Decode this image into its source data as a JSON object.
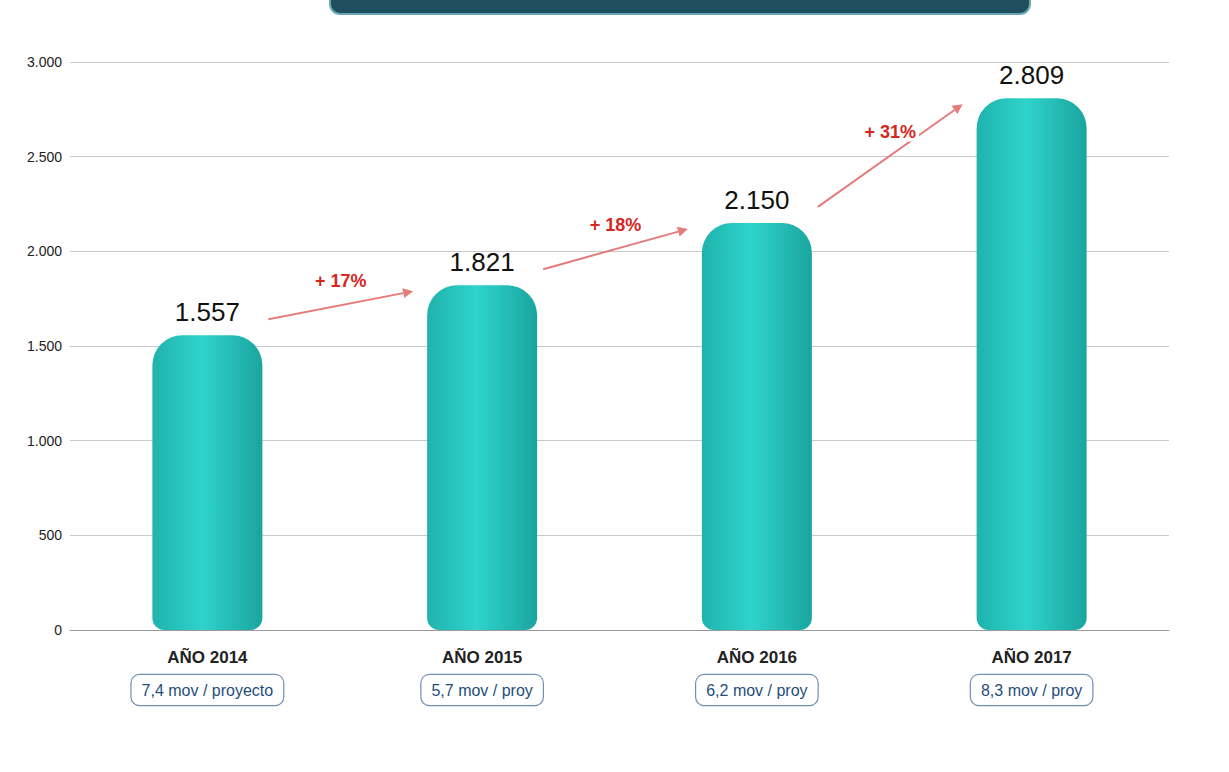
{
  "chart_data": {
    "type": "bar",
    "categories": [
      "AÑO 2014",
      "AÑO 2015",
      "AÑO 2016",
      "AÑO 2017"
    ],
    "values": [
      1557,
      1821,
      2150,
      2809
    ],
    "value_labels": [
      "1.557",
      "1.821",
      "2.150",
      "2.809"
    ],
    "color": "#2ed3cb",
    "ylim": [
      0,
      3000
    ],
    "yticks": [
      0,
      500,
      {
        "value": 1000,
        "label": "1.000"
      },
      {
        "value": 1500,
        "label": "1.500"
      },
      {
        "value": 2000,
        "label": "2.000"
      },
      {
        "value": 2500,
        "label": "2.500"
      },
      {
        "value": 3000,
        "label": "3.000"
      }
    ],
    "grid": true,
    "data_labels": true,
    "annotations": [
      "+ 17%",
      "+ 18%",
      "+ 31%"
    ],
    "category_notes": [
      "7,4 mov / proyecto",
      "5,7 mov / proy",
      "6,2 mov / proy",
      "8,3 mov / proy"
    ]
  }
}
